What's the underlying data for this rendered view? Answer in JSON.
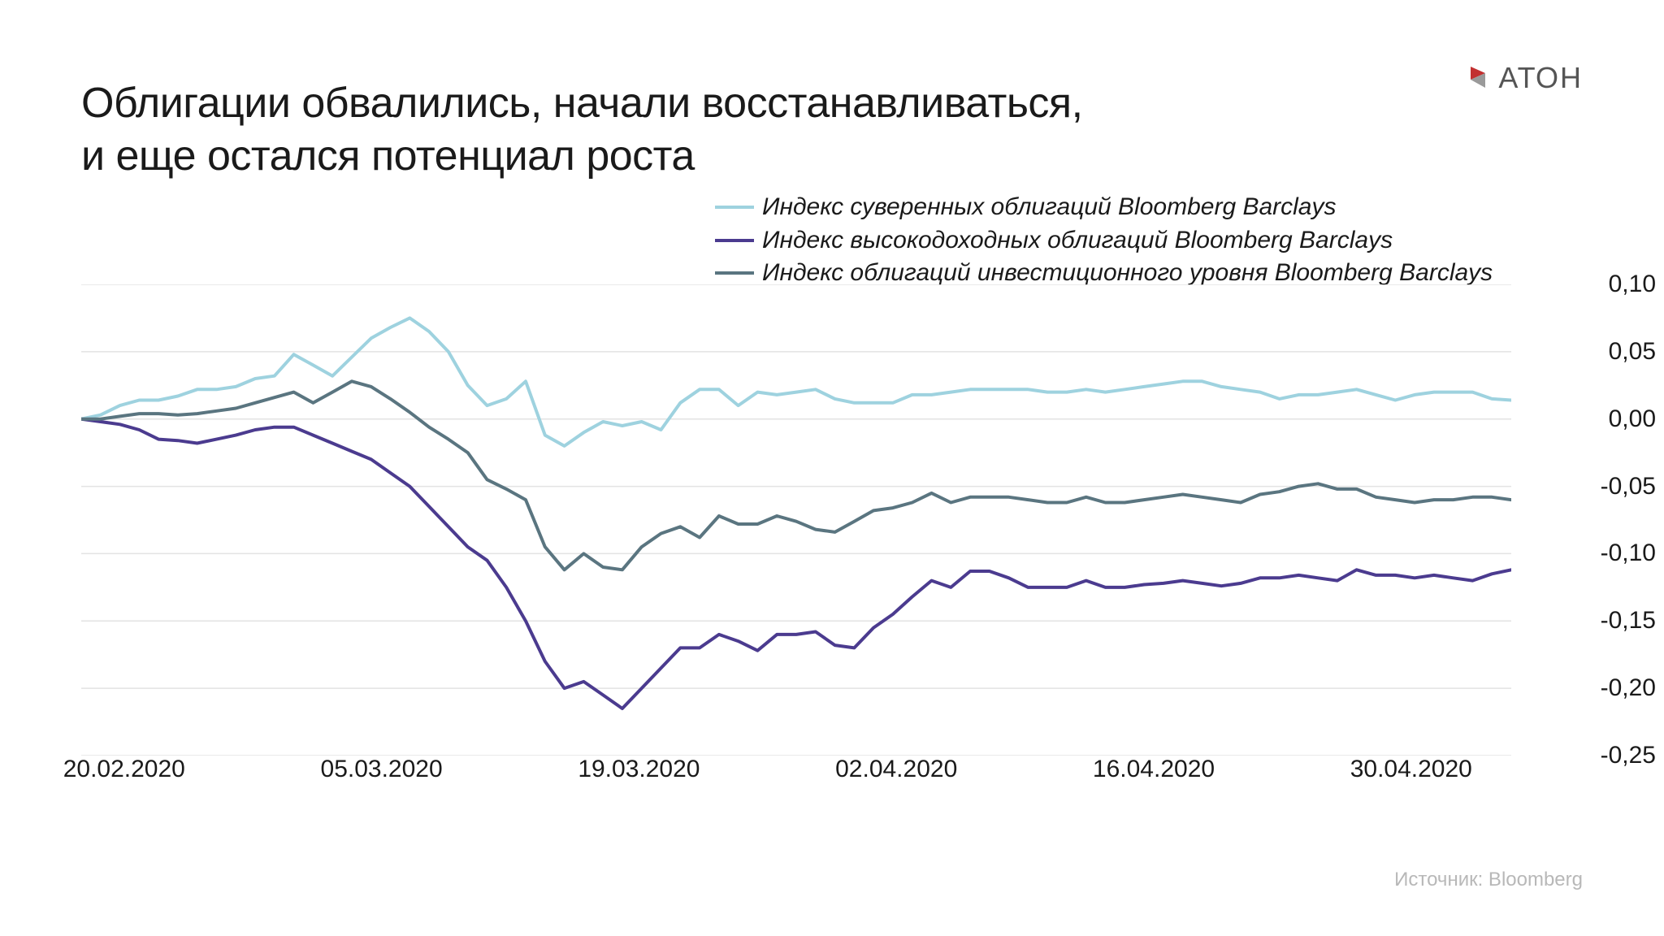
{
  "title_line1": "Облигации обвалились, начали восстанавливаться,",
  "title_line2": "и еще остался потенциал роста",
  "logo_text": "АТОН",
  "logo_color": "#c23030",
  "source_label": "Источник: Bloomberg",
  "chart": {
    "type": "line",
    "background_color": "#ffffff",
    "grid_color": "#e3e3e3",
    "axis_font_size": 30,
    "title_font_size": 52,
    "legend_font_size": 30,
    "legend_font_style": "italic",
    "line_width": 4,
    "x_labels": [
      "20.02.2020",
      "05.03.2020",
      "19.03.2020",
      "02.04.2020",
      "16.04.2020",
      "30.04.2020"
    ],
    "x_label_positions_pct": [
      3,
      21,
      39,
      57,
      75,
      93
    ],
    "ylim": [
      -0.25,
      0.1
    ],
    "y_ticks": [
      0.1,
      0.05,
      0.0,
      -0.05,
      -0.1,
      -0.15,
      -0.2,
      -0.25
    ],
    "y_tick_labels": [
      "0,10",
      "0,05",
      "0,00",
      "-0,05",
      "-0,10",
      "-0,15",
      "-0,20",
      "-0,25"
    ],
    "series": [
      {
        "name": "Индекс суверенных облигаций Bloomberg Barclays",
        "color": "#9ed2df",
        "data": [
          0.0,
          0.003,
          0.01,
          0.014,
          0.014,
          0.017,
          0.022,
          0.022,
          0.024,
          0.03,
          0.032,
          0.048,
          0.04,
          0.032,
          0.046,
          0.06,
          0.068,
          0.075,
          0.065,
          0.05,
          0.025,
          0.01,
          0.015,
          0.028,
          -0.012,
          -0.02,
          -0.01,
          -0.002,
          -0.005,
          -0.002,
          -0.008,
          0.012,
          0.022,
          0.022,
          0.01,
          0.02,
          0.018,
          0.02,
          0.022,
          0.015,
          0.012,
          0.012,
          0.012,
          0.018,
          0.018,
          0.02,
          0.022,
          0.022,
          0.022,
          0.022,
          0.02,
          0.02,
          0.022,
          0.02,
          0.022,
          0.024,
          0.026,
          0.028,
          0.028,
          0.024,
          0.022,
          0.02,
          0.015,
          0.018,
          0.018,
          0.02,
          0.022,
          0.018,
          0.014,
          0.018,
          0.02,
          0.02,
          0.02,
          0.015,
          0.014
        ]
      },
      {
        "name": "Индекс высокодоходных облигаций Bloomberg Barclays",
        "color": "#4b3b8f",
        "data": [
          0.0,
          -0.002,
          -0.004,
          -0.008,
          -0.015,
          -0.016,
          -0.018,
          -0.015,
          -0.012,
          -0.008,
          -0.006,
          -0.006,
          -0.012,
          -0.018,
          -0.024,
          -0.03,
          -0.04,
          -0.05,
          -0.065,
          -0.08,
          -0.095,
          -0.105,
          -0.125,
          -0.15,
          -0.18,
          -0.2,
          -0.195,
          -0.205,
          -0.215,
          -0.2,
          -0.185,
          -0.17,
          -0.17,
          -0.16,
          -0.165,
          -0.172,
          -0.16,
          -0.16,
          -0.158,
          -0.168,
          -0.17,
          -0.155,
          -0.145,
          -0.132,
          -0.12,
          -0.125,
          -0.113,
          -0.113,
          -0.118,
          -0.125,
          -0.125,
          -0.125,
          -0.12,
          -0.125,
          -0.125,
          -0.123,
          -0.122,
          -0.12,
          -0.122,
          -0.124,
          -0.122,
          -0.118,
          -0.118,
          -0.116,
          -0.118,
          -0.12,
          -0.112,
          -0.116,
          -0.116,
          -0.118,
          -0.116,
          -0.118,
          -0.12,
          -0.115,
          -0.112
        ]
      },
      {
        "name": "Индекс облигаций инвестиционного уровня Bloomberg Barclays",
        "color": "#5a7580",
        "data": [
          0.0,
          0.0,
          0.002,
          0.004,
          0.004,
          0.003,
          0.004,
          0.006,
          0.008,
          0.012,
          0.016,
          0.02,
          0.012,
          0.02,
          0.028,
          0.024,
          0.015,
          0.005,
          -0.006,
          -0.015,
          -0.025,
          -0.045,
          -0.052,
          -0.06,
          -0.095,
          -0.112,
          -0.1,
          -0.11,
          -0.112,
          -0.095,
          -0.085,
          -0.08,
          -0.088,
          -0.072,
          -0.078,
          -0.078,
          -0.072,
          -0.076,
          -0.082,
          -0.084,
          -0.076,
          -0.068,
          -0.066,
          -0.062,
          -0.055,
          -0.062,
          -0.058,
          -0.058,
          -0.058,
          -0.06,
          -0.062,
          -0.062,
          -0.058,
          -0.062,
          -0.062,
          -0.06,
          -0.058,
          -0.056,
          -0.058,
          -0.06,
          -0.062,
          -0.056,
          -0.054,
          -0.05,
          -0.048,
          -0.052,
          -0.052,
          -0.058,
          -0.06,
          -0.062,
          -0.06,
          -0.06,
          -0.058,
          -0.058,
          -0.06
        ]
      }
    ]
  }
}
